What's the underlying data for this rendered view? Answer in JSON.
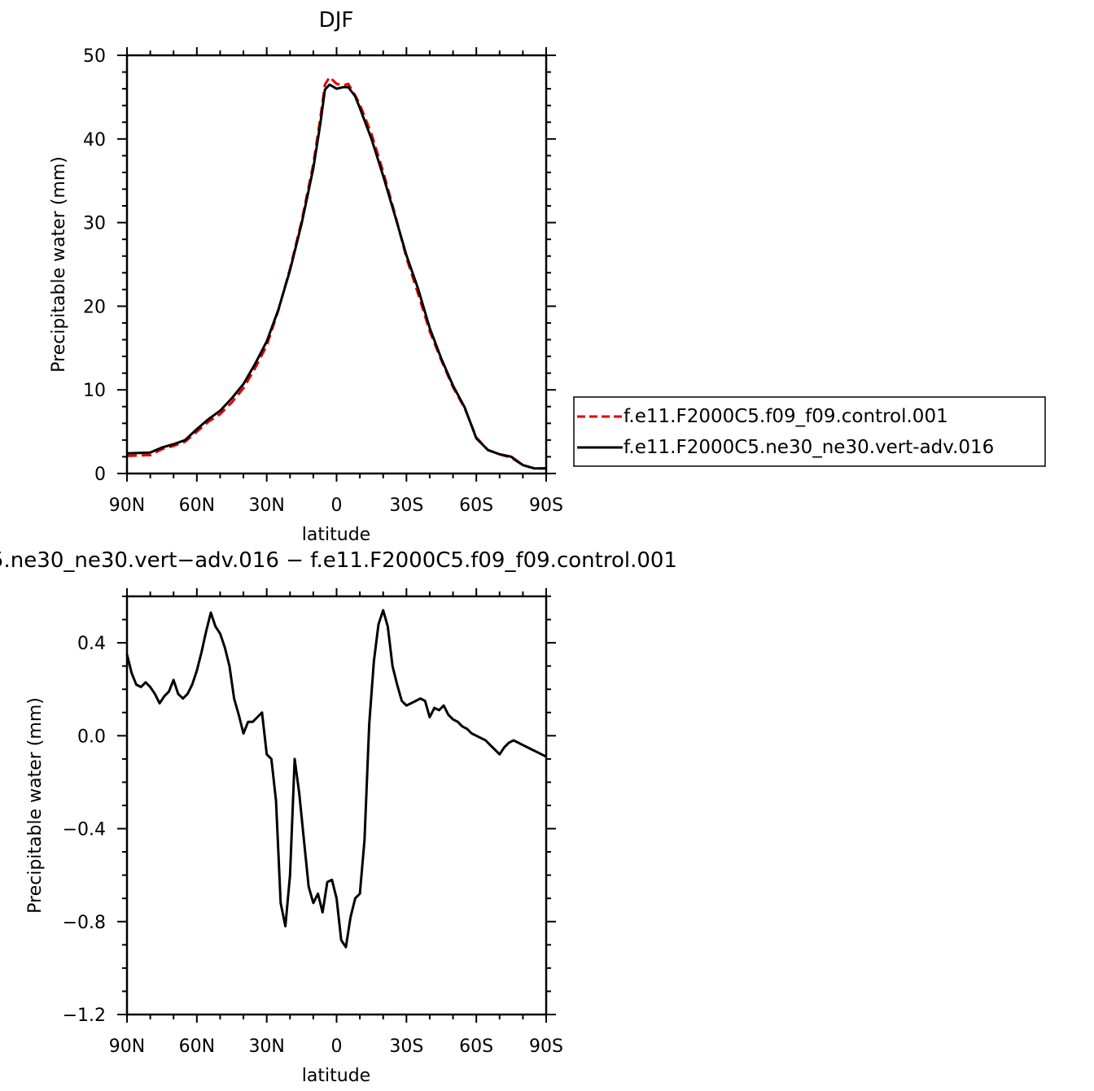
{
  "chart_data": [
    {
      "type": "line",
      "title": "DJF",
      "xlabel": "latitude",
      "ylabel": "Precipitable water (mm)",
      "xlim": [
        -90,
        90
      ],
      "ylim": [
        0,
        50
      ],
      "x_tick_labels": [
        "90N",
        "60N",
        "30N",
        "0",
        "30S",
        "60S",
        "90S"
      ],
      "y_tick_labels": [
        "0",
        "10",
        "20",
        "30",
        "40",
        "50"
      ],
      "legend_position": "right",
      "series": [
        {
          "name": "f.e11.F2000C5.f09_f09.control.001",
          "color": "#e00000",
          "style": "dashed",
          "x": [
            -90,
            -80,
            -75,
            -70,
            -65,
            -60,
            -55,
            -50,
            -45,
            -40,
            -35,
            -30,
            -25,
            -20,
            -15,
            -10,
            -7,
            -5,
            -3,
            0,
            3,
            5,
            8,
            10,
            15,
            20,
            25,
            30,
            35,
            40,
            45,
            50,
            55,
            60,
            65,
            70,
            75,
            80,
            85,
            90
          ],
          "y": [
            2.1,
            2.2,
            2.9,
            3.3,
            3.8,
            5.0,
            6.2,
            7.1,
            8.5,
            10.2,
            12.6,
            15.3,
            19.5,
            24.5,
            30.2,
            37.0,
            42.5,
            46.5,
            47.4,
            46.6,
            46.4,
            46.6,
            45.2,
            44.1,
            40.6,
            36.1,
            31.1,
            25.8,
            21.5,
            17.0,
            13.5,
            10.3,
            7.8,
            4.3,
            2.8,
            2.3,
            1.9,
            1.0,
            0.6,
            0.6
          ]
        },
        {
          "name": "f.e11.F2000C5.ne30_ne30.vert-adv.016",
          "color": "#000000",
          "style": "solid",
          "x": [
            -90,
            -80,
            -75,
            -70,
            -65,
            -60,
            -55,
            -50,
            -45,
            -40,
            -35,
            -30,
            -25,
            -20,
            -15,
            -10,
            -7,
            -5,
            -3,
            0,
            3,
            5,
            8,
            10,
            15,
            20,
            25,
            30,
            35,
            40,
            45,
            50,
            55,
            60,
            65,
            70,
            75,
            80,
            85,
            90
          ],
          "y": [
            2.4,
            2.5,
            3.1,
            3.5,
            4.0,
            5.3,
            6.5,
            7.5,
            9.0,
            10.7,
            13.1,
            15.8,
            19.6,
            24.3,
            29.9,
            36.5,
            41.8,
            45.9,
            46.5,
            46.0,
            46.2,
            46.2,
            45.1,
            43.7,
            40.0,
            35.6,
            30.9,
            26.1,
            22.1,
            17.4,
            13.7,
            10.5,
            7.9,
            4.2,
            2.8,
            2.3,
            2.0,
            1.0,
            0.6,
            0.6
          ]
        }
      ]
    },
    {
      "type": "line",
      "title": "5.ne30_ne30.vert−adv.016 − f.e11.F2000C5.f09_f09.control.001",
      "xlabel": "latitude",
      "ylabel": "Precipitable water (mm)",
      "xlim": [
        -90,
        90
      ],
      "ylim": [
        -1.2,
        0.6
      ],
      "x_tick_labels": [
        "90N",
        "60N",
        "30N",
        "0",
        "30S",
        "60S",
        "90S"
      ],
      "y_tick_labels": [
        "−1.2",
        "−0.8",
        "−0.4",
        "0.0",
        "0.4"
      ],
      "series": [
        {
          "color": "#000000",
          "style": "solid",
          "x": [
            -90,
            -88,
            -86,
            -84,
            -82,
            -80,
            -78,
            -76,
            -74,
            -72,
            -70,
            -68,
            -66,
            -64,
            -62,
            -60,
            -58,
            -56,
            -54,
            -52,
            -50,
            -48,
            -46,
            -44,
            -42,
            -40,
            -38,
            -36,
            -34,
            -32,
            -30,
            -28,
            -26,
            -24,
            -22,
            -20,
            -18,
            -16,
            -14,
            -12,
            -10,
            -8,
            -6,
            -4,
            -2,
            0,
            2,
            4,
            6,
            8,
            10,
            12,
            14,
            16,
            18,
            20,
            22,
            24,
            26,
            28,
            30,
            32,
            34,
            36,
            38,
            40,
            42,
            44,
            46,
            48,
            50,
            52,
            54,
            56,
            58,
            60,
            62,
            64,
            66,
            68,
            70,
            72,
            74,
            76,
            78,
            80,
            82,
            84,
            86,
            88,
            90
          ],
          "y": [
            0.35,
            0.27,
            0.22,
            0.21,
            0.23,
            0.21,
            0.18,
            0.14,
            0.17,
            0.19,
            0.24,
            0.18,
            0.16,
            0.18,
            0.22,
            0.28,
            0.36,
            0.45,
            0.53,
            0.47,
            0.44,
            0.38,
            0.3,
            0.16,
            0.09,
            0.01,
            0.06,
            0.06,
            0.08,
            0.1,
            -0.08,
            -0.1,
            -0.28,
            -0.72,
            -0.82,
            -0.6,
            -0.1,
            -0.25,
            -0.45,
            -0.65,
            -0.72,
            -0.68,
            -0.76,
            -0.63,
            -0.62,
            -0.7,
            -0.88,
            -0.91,
            -0.78,
            -0.7,
            -0.68,
            -0.45,
            0.05,
            0.32,
            0.48,
            0.54,
            0.47,
            0.3,
            0.22,
            0.15,
            0.13,
            0.14,
            0.15,
            0.16,
            0.15,
            0.08,
            0.12,
            0.11,
            0.13,
            0.09,
            0.07,
            0.06,
            0.04,
            0.03,
            0.01,
            0.0,
            -0.01,
            -0.02,
            -0.04,
            -0.06,
            -0.08,
            -0.05,
            -0.03,
            -0.02,
            -0.03,
            -0.04,
            -0.05,
            -0.06,
            -0.07,
            -0.08,
            -0.09
          ]
        }
      ]
    }
  ]
}
